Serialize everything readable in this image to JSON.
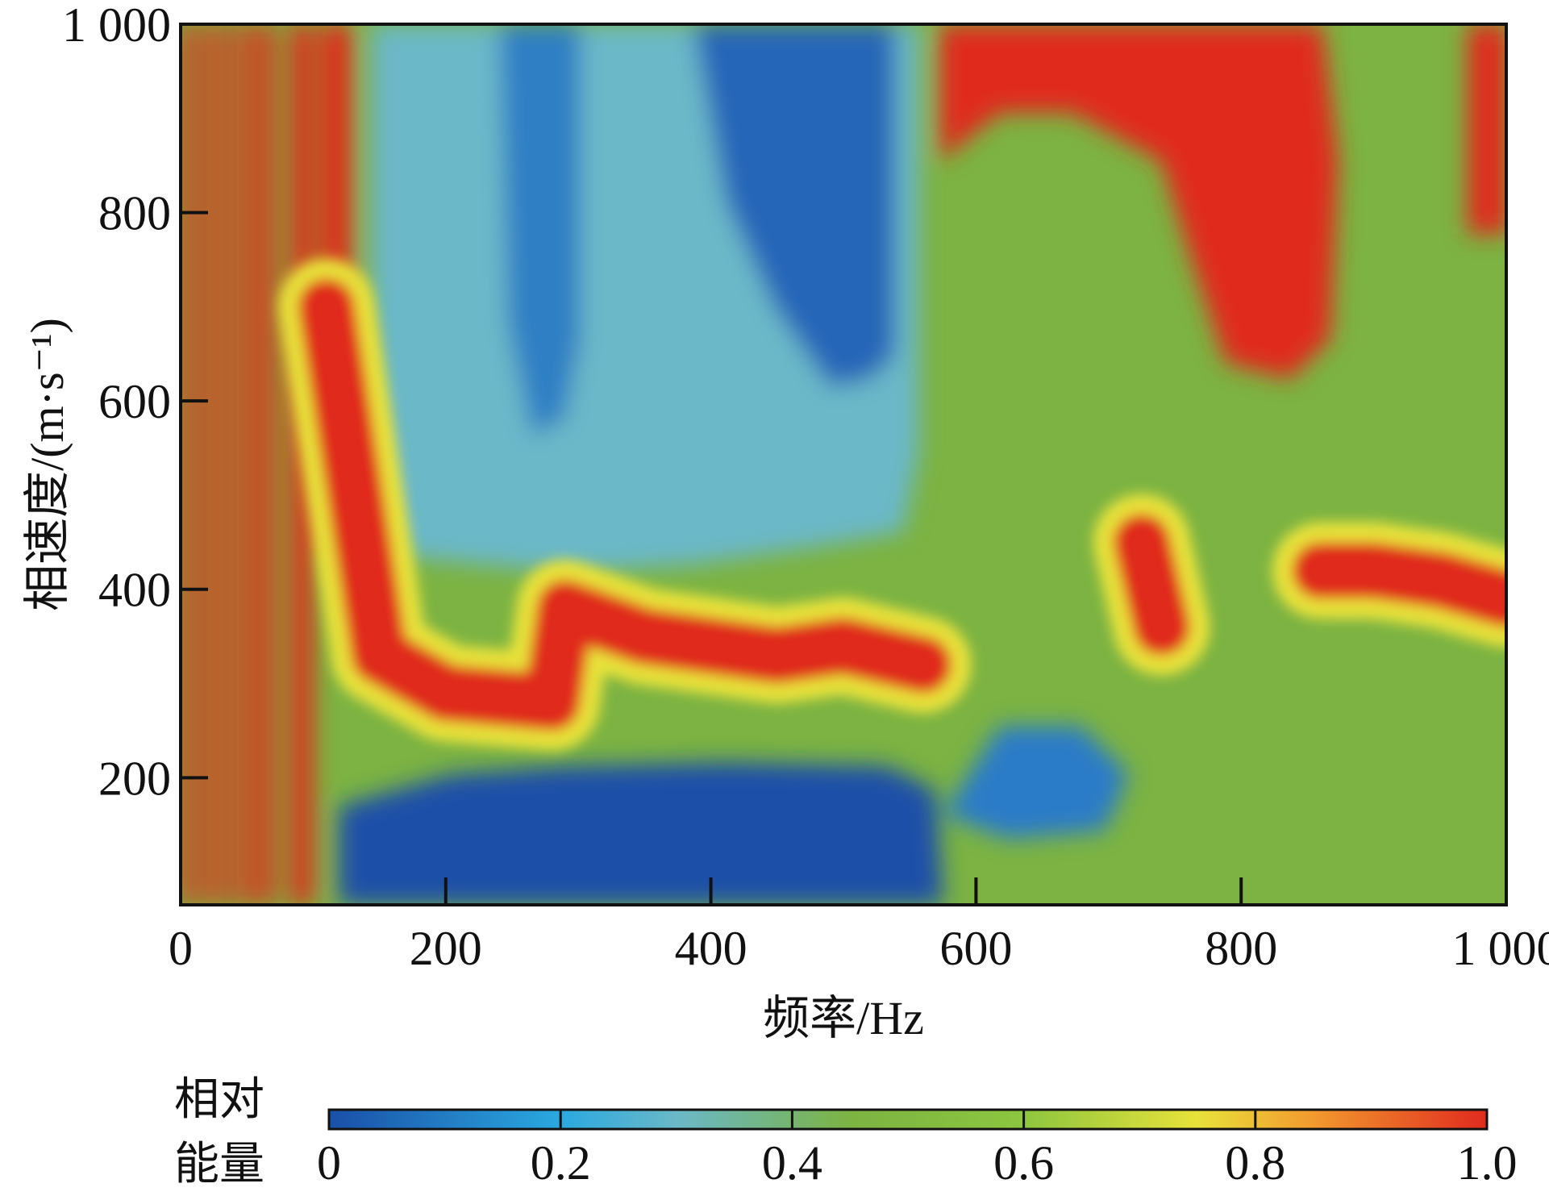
{
  "chart_data": {
    "type": "heatmap",
    "title": "",
    "xlabel": "频率/Hz",
    "ylabel": "相速度/(m·s⁻¹)",
    "xlim": [
      0,
      1000
    ],
    "ylim": [
      65,
      1000
    ],
    "x_ticks": [
      0,
      200,
      400,
      600,
      800,
      1000
    ],
    "x_tick_labels": [
      "0",
      "200",
      "400",
      "600",
      "800",
      "1 000"
    ],
    "y_ticks": [
      200,
      400,
      600,
      800,
      1000
    ],
    "y_tick_labels": [
      "200",
      "400",
      "600",
      "800",
      "1 000"
    ],
    "colorbar": {
      "title_line1": "相对",
      "title_line2": "能量",
      "range": [
        0,
        1
      ],
      "ticks": [
        0,
        0.2,
        0.4,
        0.6,
        0.8,
        1.0
      ],
      "tick_labels": [
        "0",
        "0.2",
        "0.4",
        "0.6",
        "0.8",
        "1.0"
      ],
      "colors": [
        "#1a4fa8",
        "#2aa9e0",
        "#6ab8c8",
        "#7cb342",
        "#8dc63f",
        "#e8e23a",
        "#f29a2e",
        "#e02a1e"
      ]
    },
    "ridges": [
      {
        "freq": [
          110,
          150,
          200,
          280,
          290,
          350,
          400,
          450,
          500,
          560
        ],
        "phase_velocity": [
          700,
          330,
          290,
          280,
          380,
          350,
          340,
          330,
          340,
          320
        ],
        "energy": 1.0
      },
      {
        "freq": [
          860,
          900,
          950,
          1000
        ],
        "phase_velocity": [
          420,
          420,
          410,
          390
        ],
        "energy": 1.0
      },
      {
        "freq": [
          725,
          740
        ],
        "phase_velocity": [
          450,
          360
        ],
        "energy": 0.95
      }
    ],
    "high_energy_regions": [
      {
        "freq_range": [
          0,
          110
        ],
        "phase_velocity_range": [
          65,
          1000
        ],
        "energy": 1.0
      },
      {
        "freq_range": [
          570,
          700
        ],
        "phase_velocity_range": [
          850,
          1000
        ],
        "energy": 1.0
      },
      {
        "freq_range": [
          790,
          870
        ],
        "phase_velocity_range": [
          620,
          1000
        ],
        "energy": 1.0
      },
      {
        "freq_range": [
          980,
          1000
        ],
        "phase_velocity_range": [
          750,
          1000
        ],
        "energy": 1.0
      }
    ],
    "low_energy_regions": [
      {
        "freq_range": [
          110,
          570
        ],
        "phase_velocity_range": [
          65,
          230
        ],
        "energy": 0.05
      },
      {
        "freq_range": [
          400,
          560
        ],
        "phase_velocity_range": [
          650,
          1000
        ],
        "energy": 0.1
      },
      {
        "freq_range": [
          580,
          700
        ],
        "phase_velocity_range": [
          130,
          250
        ],
        "energy": 0.1
      }
    ]
  }
}
